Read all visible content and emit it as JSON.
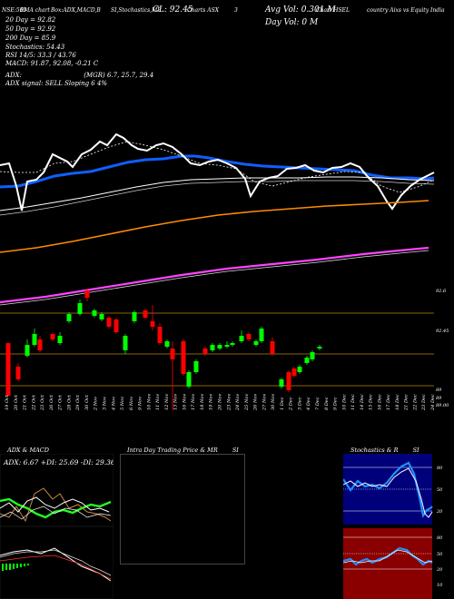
{
  "header": {
    "items": [
      "NSE:500",
      "EMA chart",
      "Box:ADX,MACD,B",
      "SI,Stochastics,MR",
      "CL: 92.45",
      "Charts ASX",
      "3",
      "Avg Vol: 0.301 M",
      "Chart HSEL",
      "country Aixs vs Equity India"
    ],
    "lines": [
      "20 Day = 92.82",
      "50 Day = 92.92",
      "200 Day = 85.9",
      "Stochastics: 54.43",
      "RSI 14/5: 33.3 / 43.76",
      "MACD: 91.87, 92.08, -0.21 C"
    ],
    "day_vol": "Day Vol: 0   M",
    "adx_line": "ADX: ",
    "adx_values": "(MGR) 6.7, 25.7, 29.4",
    "adx_signal": "ADX  signal: SELL  Sloping 6 4%"
  },
  "price_axis": {
    "labels": [
      "92.6",
      "92.45",
      "89",
      "89",
      "89.00"
    ]
  },
  "dates": [
    "19 Oct",
    "20 Oct",
    "21 Oct",
    "22 Oct",
    "23 Oct",
    "26 Oct",
    "27 Oct",
    "28 Oct",
    "29 Oct",
    "30 Oct",
    "2 Nov",
    "3 Nov",
    "4 Nov",
    "5 Nov",
    "6 Nov",
    "9 Nov",
    "10 Nov",
    "11 Nov",
    "12 Nov",
    "13 Nov",
    "16 Nov",
    "17 Nov",
    "18 Nov",
    "19 Nov",
    "20 Nov",
    "23 Nov",
    "24 Nov",
    "25 Nov",
    "26 Nov",
    "27 Nov",
    "30 Nov",
    "1 Dec",
    "2 Dec",
    "3 Dec",
    "4 Dec",
    "7 Dec",
    "8 Dec",
    "9 Dec",
    "10 Dec",
    "11 Dec",
    "14 Dec",
    "15 Dec",
    "16 Dec",
    "17 Dec",
    "18 Dec",
    "21 Dec",
    "22 Dec",
    "23 Dec",
    "24 Dec"
  ],
  "panels": {
    "adx_title": "ADX  & MACD",
    "adx_values": "ADX: 6.67  +DI: 25.69  -DI: 29.36",
    "intraday_title": "Intra  Day Trading Price  & MR",
    "intraday_si": "SI",
    "stoch_title": "Stochastics & R",
    "stoch_si": "SI",
    "stoch_axis": [
      "80",
      "50",
      "20"
    ],
    "rsi_axis": [
      "80",
      "50",
      "20",
      "10"
    ]
  },
  "colors": {
    "bull": "#00ff00",
    "bear": "#ff0000",
    "ema20": "#0f5fff",
    "ema200": "#ff8c00",
    "ema_long": "#ff44ff",
    "stoch_bg": "#00007a",
    "rsi_bg": "#8a0000"
  }
}
